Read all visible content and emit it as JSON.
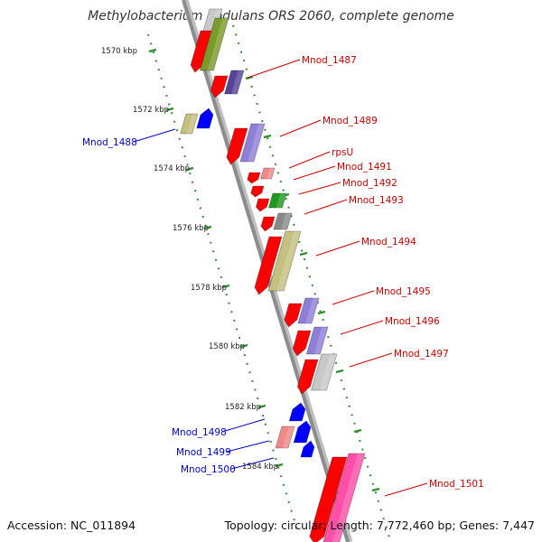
{
  "title": "Methylobacterium nodulans ORS 2060, complete genome",
  "footer": {
    "accession_label": "Accession:",
    "accession": "NC_011894",
    "topology_label": "Topology:",
    "topology": "circular",
    "length_label": "Length:",
    "length": "7,772,460 bp",
    "genes_label": "Genes:",
    "genes": "7,447"
  },
  "colors": {
    "backbone": "#8c8c8c",
    "tick": "#2f8f2f",
    "forward_label": "#cc0000",
    "reverse_label": "#0000cc",
    "cds_red": "#ff0000",
    "olive": "#7a9a2a",
    "dark_purple": "#55449a",
    "lavender": "#8f7fd8",
    "khaki": "#c4c080",
    "green": "#1f9a1f",
    "gray": "#8a8a8a",
    "light_gray": "#c8c8c8",
    "pink": "#ff4fa8",
    "salmon": "#f08888",
    "blue": "#0000ff"
  },
  "kbp_ticks": [
    "1570 kbp",
    "1572 kbp",
    "1574 kbp",
    "1576 kbp",
    "1578 kbp",
    "1580 kbp",
    "1582 kbp",
    "1584 kbp"
  ],
  "labels": {
    "forward": [
      "Mnod_1487",
      "Mnod_1489",
      "rpsU",
      "Mnod_1491",
      "Mnod_1492",
      "Mnod_1493",
      "Mnod_1494",
      "Mnod_1495",
      "Mnod_1496",
      "Mnod_1497",
      "Mnod_1501"
    ],
    "reverse": [
      "Mnod_1488",
      "Mnod_1498",
      "Mnod_1499",
      "Mnod_1500"
    ]
  }
}
